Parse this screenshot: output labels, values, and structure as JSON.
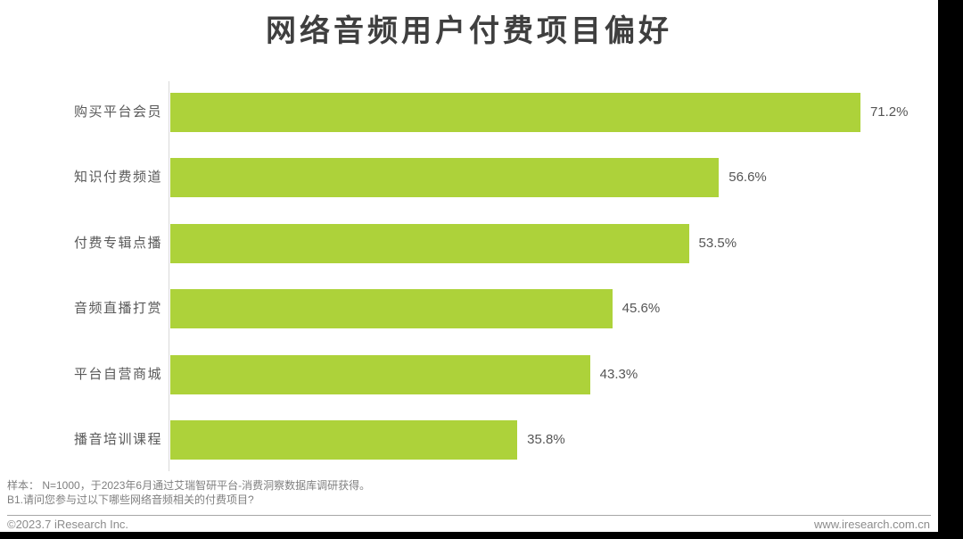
{
  "header": {
    "title": "网络音频用户付费项目偏好"
  },
  "chart_data": {
    "type": "bar",
    "orientation": "horizontal",
    "title": "网络音频用户付费项目偏好",
    "categories": [
      "购买平台会员",
      "知识付费频道",
      "付费专辑点播",
      "音频直播打赏",
      "平台自营商城",
      "播音培训课程"
    ],
    "values": [
      71.2,
      56.6,
      53.5,
      45.6,
      43.3,
      35.8
    ],
    "value_labels": [
      "71.2%",
      "56.6%",
      "53.5%",
      "45.6%",
      "43.3%",
      "35.8%"
    ],
    "unit": "%",
    "xlabel": "",
    "ylabel": "",
    "xlim": [
      0,
      80
    ],
    "gridlines": false,
    "legend_position": "none",
    "bar_color": "#add23a",
    "title_color": "#3f3f3f",
    "label_color": "#595959",
    "value_color": "#555555"
  },
  "footnotes": {
    "line1": "样本： N=1000，于2023年6月通过艾瑞智研平台-消费洞察数据库调研获得。",
    "line2": "B1.请问您参与过以下哪些网络音频相关的付费项目?"
  },
  "footer": {
    "copyright": "©2023.7 iResearch Inc.",
    "website": "www.iresearch.com.cn"
  }
}
